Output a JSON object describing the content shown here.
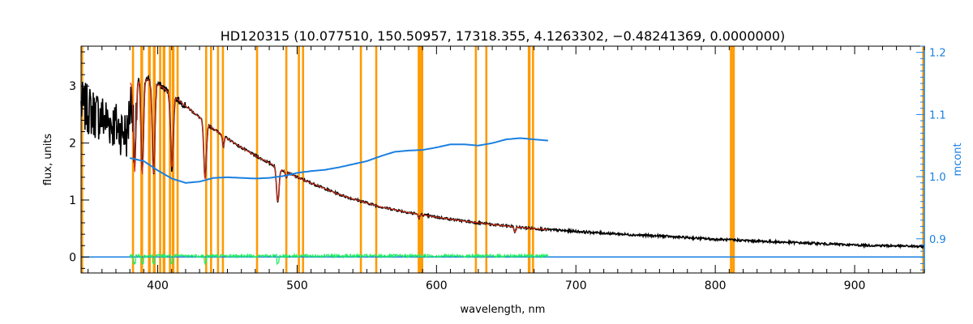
{
  "chart_data": {
    "type": "line",
    "title": "HD120315    (10.077510, 150.50957, 17318.355, 4.1263302, −0.48241369, 0.0000000)",
    "xlabel": "wavelength, nm",
    "ylabel": "flux, units",
    "y2label": "mcont",
    "xlim": [
      345,
      950
    ],
    "ylim": [
      -0.28,
      3.7
    ],
    "y2lim": [
      0.845,
      1.21
    ],
    "x_ticks": [
      400,
      500,
      600,
      700,
      800,
      900
    ],
    "x_tick_labels": [
      "400",
      "500",
      "600",
      "700",
      "800",
      "900"
    ],
    "y_ticks": [
      0,
      1,
      2,
      3
    ],
    "y_tick_labels": [
      "0",
      "1",
      "2",
      "3"
    ],
    "y2_ticks": [
      0.9,
      1.0,
      1.1,
      1.2
    ],
    "y2_tick_labels": [
      "0.9",
      "1.0",
      "1.1",
      "1.2"
    ],
    "colors": {
      "observed": "#000000",
      "model": "#d0301a",
      "mcont": "#1a80e0",
      "residual": "#22ee66",
      "zero_line": "#1a80e0",
      "masked_band": "#ff9a00",
      "right_axis": "#1a80e0"
    },
    "masked_bands_nm": [
      [
        345,
        346.5
      ],
      [
        381.5,
        383
      ],
      [
        387.5,
        389.5
      ],
      [
        393,
        395
      ],
      [
        396.5,
        398.5
      ],
      [
        401,
        402.5
      ],
      [
        403.5,
        405.5
      ],
      [
        408,
        409.5
      ],
      [
        410,
        412
      ],
      [
        413.5,
        415
      ],
      [
        434,
        435.5
      ],
      [
        437.5,
        439
      ],
      [
        442.5,
        444
      ],
      [
        446,
        447.5
      ],
      [
        470.5,
        472
      ],
      [
        491.5,
        493
      ],
      [
        500.5,
        502
      ],
      [
        503.5,
        505
      ],
      [
        545,
        546.5
      ],
      [
        556,
        557.5
      ],
      [
        586.5,
        588.5
      ],
      [
        588.5,
        590.5
      ],
      [
        627.5,
        629
      ],
      [
        635,
        636.5
      ],
      [
        665.5,
        667.5
      ],
      [
        668.5,
        670
      ],
      [
        810.5,
        812.5
      ],
      [
        812.5,
        814
      ],
      [
        948.5,
        950
      ]
    ],
    "series": [
      {
        "name": "observed",
        "x": [
          345,
          360,
          370,
          378,
          382,
          386,
          390,
          395,
          400,
          405,
          410,
          420,
          430,
          440,
          450,
          460,
          470,
          480,
          490,
          500,
          510,
          520,
          530,
          540,
          550,
          560,
          580,
          600,
          620,
          640,
          660,
          680,
          700,
          720,
          740,
          760,
          780,
          800,
          820,
          840,
          860,
          880,
          900,
          920,
          940,
          950
        ],
        "y": [
          2.65,
          2.45,
          2.3,
          2.15,
          3.05,
          3.15,
          3.2,
          3.1,
          3.05,
          2.95,
          2.85,
          2.65,
          2.45,
          2.25,
          2.08,
          1.92,
          1.78,
          1.65,
          1.52,
          1.4,
          1.3,
          1.2,
          1.1,
          1.02,
          0.95,
          0.88,
          0.78,
          0.7,
          0.63,
          0.57,
          0.52,
          0.48,
          0.45,
          0.42,
          0.39,
          0.37,
          0.34,
          0.31,
          0.29,
          0.27,
          0.25,
          0.23,
          0.21,
          0.2,
          0.19,
          0.18
        ]
      },
      {
        "name": "model",
        "x": [
          380,
          384,
          388,
          392,
          396,
          400,
          405,
          410,
          420,
          430,
          440,
          450,
          460,
          470,
          480,
          490,
          500,
          510,
          520,
          530,
          540,
          550,
          560,
          580,
          600,
          620,
          640,
          660,
          680
        ],
        "y": [
          3.05,
          3.1,
          3.15,
          3.12,
          3.08,
          3.03,
          2.95,
          2.85,
          2.65,
          2.45,
          2.25,
          2.08,
          1.92,
          1.78,
          1.65,
          1.52,
          1.4,
          1.3,
          1.2,
          1.1,
          1.02,
          0.95,
          0.88,
          0.78,
          0.7,
          0.63,
          0.57,
          0.52,
          0.48
        ]
      },
      {
        "name": "mcont",
        "axis": "right",
        "x": [
          380,
          390,
          400,
          410,
          420,
          430,
          440,
          450,
          460,
          470,
          480,
          490,
          500,
          510,
          520,
          530,
          540,
          550,
          560,
          570,
          580,
          590,
          600,
          610,
          620,
          630,
          640,
          650,
          660,
          670,
          680
        ],
        "y": [
          1.03,
          1.025,
          1.01,
          0.997,
          0.99,
          0.992,
          0.998,
          0.999,
          0.998,
          0.997,
          0.998,
          1.001,
          1.006,
          1.009,
          1.011,
          1.015,
          1.02,
          1.025,
          1.033,
          1.04,
          1.042,
          1.043,
          1.047,
          1.052,
          1.052,
          1.05,
          1.054,
          1.06,
          1.062,
          1.06,
          1.058
        ]
      },
      {
        "name": "residual",
        "x": [
          380,
          680
        ],
        "y": [
          0.02,
          0.02
        ]
      }
    ],
    "absorption_lines_nm": [
      {
        "x": 383.5,
        "depth": 1.6
      },
      {
        "x": 388.9,
        "depth": 1.7
      },
      {
        "x": 397.0,
        "depth": 1.6
      },
      {
        "x": 410.2,
        "depth": 1.3
      },
      {
        "x": 434.0,
        "depth": 1.0
      },
      {
        "x": 447.1,
        "depth": 0.2
      },
      {
        "x": 486.1,
        "depth": 0.6
      },
      {
        "x": 492.2,
        "depth": 0.1
      },
      {
        "x": 587.6,
        "depth": 0.07
      },
      {
        "x": 656.3,
        "depth": 0.1
      }
    ],
    "grid": false,
    "legend": "none"
  }
}
